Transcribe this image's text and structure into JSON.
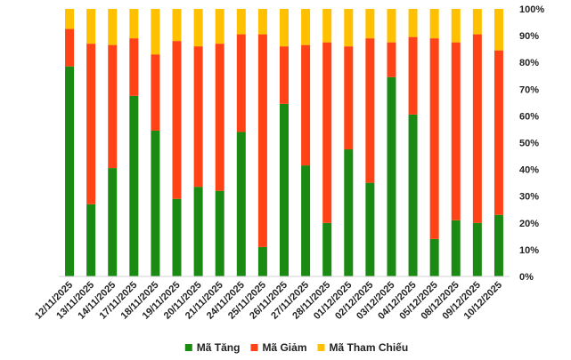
{
  "chart_data": {
    "type": "bar",
    "stacked": true,
    "percent": true,
    "categories": [
      "12/11/2025",
      "13/11/2025",
      "14/11/2025",
      "17/11/2025",
      "18/11/2025",
      "19/11/2025",
      "20/11/2025",
      "21/11/2025",
      "24/11/2025",
      "25/11/2025",
      "26/11/2025",
      "27/11/2025",
      "28/11/2025",
      "01/12/2025",
      "02/12/2025",
      "03/12/2025",
      "04/12/2025",
      "05/12/2025",
      "08/12/2025",
      "09/12/2025",
      "10/12/2025"
    ],
    "series": [
      {
        "name": "Mã Tăng",
        "color": "#1a8a12",
        "values": [
          78.5,
          27,
          40.5,
          67.5,
          54.5,
          29,
          33.5,
          32,
          54,
          11,
          64.5,
          41.5,
          20,
          47.5,
          35,
          74.5,
          60.5,
          14,
          21,
          20,
          23
        ]
      },
      {
        "name": "Mã Giảm",
        "color": "#ff4316",
        "values": [
          14,
          60,
          46,
          21.5,
          28.5,
          59,
          52.5,
          55,
          36.5,
          79.5,
          21.5,
          45,
          67.5,
          38.5,
          54,
          13,
          29,
          75,
          66.5,
          70.5,
          61.5
        ]
      },
      {
        "name": "Mã Tham Chiếu",
        "color": "#ffc000",
        "values": [
          7.5,
          13,
          13.5,
          11,
          17,
          12,
          14,
          13,
          9.5,
          9.5,
          14,
          13.5,
          12.5,
          14,
          11,
          12.5,
          10.5,
          11,
          12.5,
          9.5,
          15.5
        ]
      }
    ],
    "ylim": [
      0,
      100
    ],
    "yticks": [
      "0%",
      "10%",
      "20%",
      "30%",
      "40%",
      "50%",
      "60%",
      "70%",
      "80%",
      "90%",
      "100%"
    ],
    "legend": "bottom",
    "grid": false
  }
}
